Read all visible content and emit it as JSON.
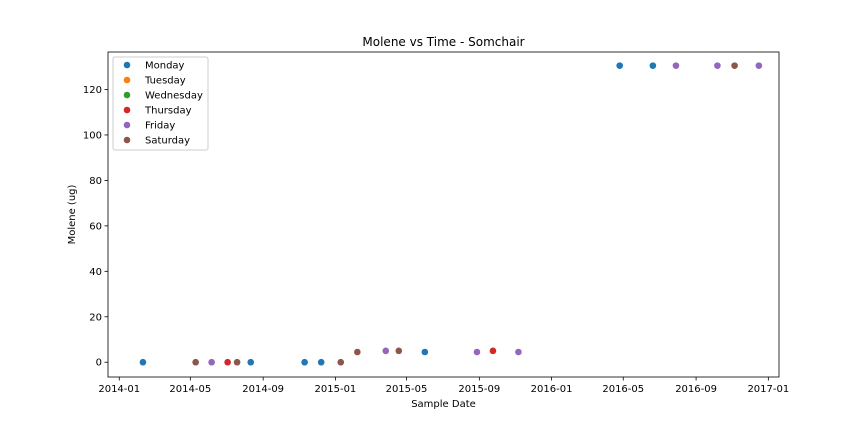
{
  "chart_data": {
    "type": "scatter",
    "title": "Molene vs Time - Somchair",
    "xlabel": "Sample Date",
    "ylabel": "Molene (ug)",
    "xlim": [
      "2013-12-13",
      "2017-01-19"
    ],
    "ylim": [
      -6.5,
      136.5
    ],
    "x_ticks": [
      "2014-01",
      "2014-05",
      "2014-09",
      "2015-01",
      "2015-05",
      "2015-09",
      "2016-01",
      "2016-05",
      "2016-09",
      "2017-01"
    ],
    "y_ticks": [
      0,
      20,
      40,
      60,
      80,
      100,
      120
    ],
    "grid": false,
    "legend_position": "top-left",
    "series": [
      {
        "name": "Monday",
        "color": "#1f77b4",
        "points": [
          {
            "x": "2014-02-10",
            "y": 0
          },
          {
            "x": "2014-08-11",
            "y": 0
          },
          {
            "x": "2014-11-10",
            "y": 0
          },
          {
            "x": "2014-12-08",
            "y": 0
          },
          {
            "x": "2015-06-01",
            "y": 4.5
          },
          {
            "x": "2016-04-25",
            "y": 130.5
          },
          {
            "x": "2016-06-20",
            "y": 130.5
          }
        ]
      },
      {
        "name": "Tuesday",
        "color": "#ff7f0e",
        "points": []
      },
      {
        "name": "Wednesday",
        "color": "#2ca02c",
        "points": []
      },
      {
        "name": "Thursday",
        "color": "#d62728",
        "points": [
          {
            "x": "2014-07-03",
            "y": 0
          },
          {
            "x": "2015-09-24",
            "y": 5
          }
        ]
      },
      {
        "name": "Friday",
        "color": "#9467bd",
        "points": [
          {
            "x": "2014-06-06",
            "y": 0
          },
          {
            "x": "2015-03-27",
            "y": 5
          },
          {
            "x": "2015-08-28",
            "y": 4.5
          },
          {
            "x": "2015-11-06",
            "y": 4.5
          },
          {
            "x": "2016-07-29",
            "y": 130.5
          },
          {
            "x": "2016-10-07",
            "y": 130.5
          },
          {
            "x": "2016-12-16",
            "y": 130.5
          }
        ]
      },
      {
        "name": "Saturday",
        "color": "#8c564b",
        "points": [
          {
            "x": "2014-05-10",
            "y": 0
          },
          {
            "x": "2014-07-19",
            "y": 0
          },
          {
            "x": "2015-01-10",
            "y": 0
          },
          {
            "x": "2015-02-07",
            "y": 4.5
          },
          {
            "x": "2015-04-18",
            "y": 5
          },
          {
            "x": "2016-11-05",
            "y": 130.5
          }
        ]
      }
    ]
  }
}
